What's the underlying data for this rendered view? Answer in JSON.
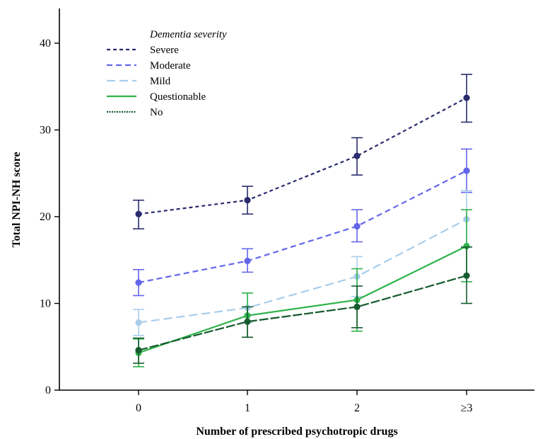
{
  "chart_data": {
    "type": "line",
    "title": "",
    "xlabel": "Number of prescribed psychotropic drugs",
    "ylabel": "Total NPI-NH score",
    "categories": [
      "0",
      "1",
      "2",
      "≥3"
    ],
    "ylim": [
      0,
      44
    ],
    "yticks": [
      0,
      10,
      20,
      30,
      40
    ],
    "grid": false,
    "legend": {
      "title": "Dementia severity",
      "placement": "top-left",
      "entries": [
        "Severe",
        "Moderate",
        "Mild",
        "Questionable",
        "No"
      ]
    },
    "series": [
      {
        "name": "Severe",
        "color": "#2a2c6e",
        "line_style": "dashed-short",
        "values": [
          20.3,
          21.9,
          27.0,
          33.7
        ],
        "ci_low": [
          18.6,
          20.3,
          24.8,
          30.9
        ],
        "ci_high": [
          21.9,
          23.5,
          29.1,
          36.4
        ]
      },
      {
        "name": "Moderate",
        "color": "#6366ea",
        "line_style": "dashed",
        "values": [
          12.4,
          14.9,
          18.9,
          25.3
        ],
        "ci_low": [
          10.9,
          13.6,
          17.1,
          22.8
        ],
        "ci_high": [
          13.9,
          16.3,
          20.8,
          27.8
        ]
      },
      {
        "name": "Mild",
        "color": "#a9cdec",
        "line_style": "dashed-long",
        "values": [
          7.8,
          9.5,
          13.1,
          19.7
        ],
        "ci_low": [
          6.3,
          7.8,
          10.8,
          16.5
        ],
        "ci_high": [
          9.3,
          11.2,
          15.4,
          23.0
        ]
      },
      {
        "name": "Questionable",
        "color": "#2fb34a",
        "line_style": "solid",
        "values": [
          4.3,
          8.6,
          10.4,
          16.6
        ],
        "ci_low": [
          2.7,
          6.1,
          6.8,
          12.5
        ],
        "ci_high": [
          5.9,
          11.2,
          14.0,
          20.8
        ]
      },
      {
        "name": "No",
        "color": "#155b2e",
        "line_style": "dashed-long-dark",
        "values": [
          4.6,
          7.9,
          9.6,
          13.2
        ],
        "ci_low": [
          3.1,
          6.1,
          7.2,
          10.0
        ],
        "ci_high": [
          6.0,
          9.6,
          12.0,
          16.5
        ]
      }
    ]
  }
}
